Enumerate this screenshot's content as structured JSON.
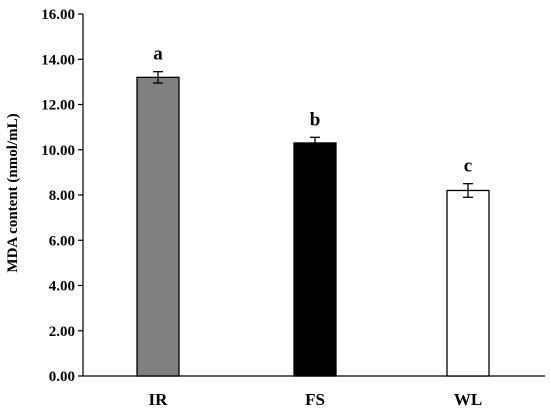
{
  "chart_data": {
    "type": "bar",
    "title": "",
    "xlabel": "",
    "ylabel": "MDA content (nmol/mL)",
    "ylim": [
      0,
      16
    ],
    "yticks": [
      "0.00",
      "2.00",
      "4.00",
      "6.00",
      "8.00",
      "10.00",
      "12.00",
      "14.00",
      "16.00"
    ],
    "grid": false,
    "categories": [
      "IR",
      "FS",
      "WL"
    ],
    "values": [
      13.2,
      10.3,
      8.2
    ],
    "errors": [
      0.25,
      0.25,
      0.3
    ],
    "significance_labels": [
      "a",
      "b",
      "c"
    ],
    "bar_colors": [
      "#808080",
      "#000000",
      "#ffffff"
    ]
  }
}
